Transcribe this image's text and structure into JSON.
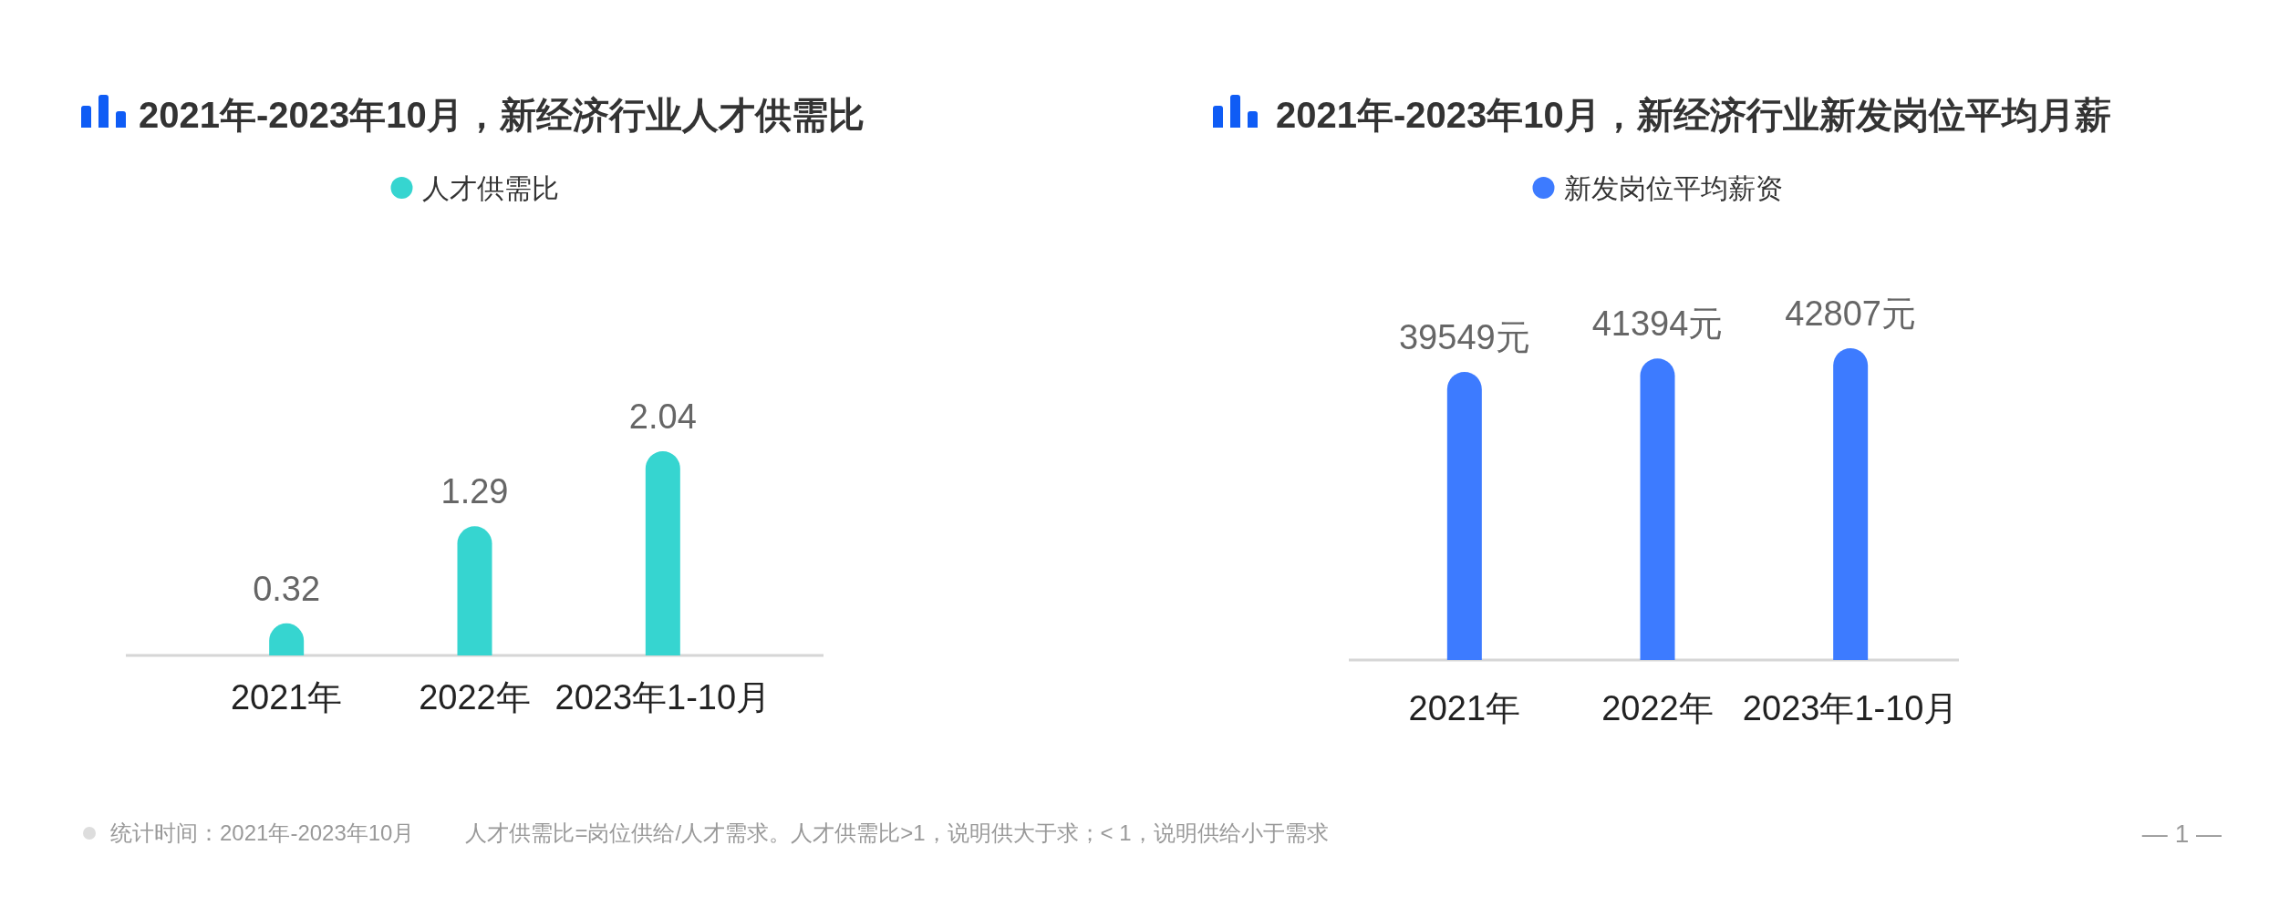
{
  "chart_data": [
    {
      "type": "bar",
      "title": "2021年-2023年10月，新经济行业人才供需比",
      "categories": [
        "2021年",
        "2022年",
        "2023年1-10月"
      ],
      "series": [
        {
          "name": "人才供需比",
          "color": "#36d5d0",
          "values": [
            0.32,
            1.29,
            2.04
          ]
        }
      ],
      "data_labels": true,
      "legend": "top",
      "tick_labels": "x",
      "annotations": [
        "统计时间：2021年-2023年10月",
        "人才供需比=岗位供给/人才需求。人才供需比>1，说明供大于求；< 1，说明供给小于需求"
      ]
    },
    {
      "type": "bar",
      "title": "2021年-2023年10月，新经济行业新发岗位平均月薪",
      "categories": [
        "2021年",
        "2022年",
        "2023年1-10月"
      ],
      "series": [
        {
          "name": "新发岗位平均薪资",
          "color": "#3d7bff",
          "values": [
            39549,
            41394,
            42807
          ],
          "value_labels": [
            "39549元",
            "41394元",
            "42807元"
          ]
        }
      ],
      "legend": "top",
      "tick_labels": "x",
      "annotations": [
        "— 1 —"
      ]
    }
  ]
}
